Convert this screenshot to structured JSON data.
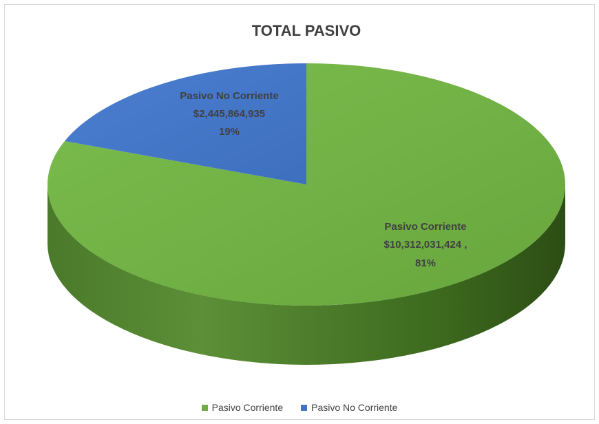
{
  "chart_data": {
    "type": "pie",
    "title": "TOTAL PASIVO",
    "categories": [
      "Pasivo Corriente",
      "Pasivo No Corriente"
    ],
    "values": [
      10312031424,
      2445864935
    ],
    "value_labels": [
      "$10,312,031,424 ,",
      "$2,445,864,935"
    ],
    "percent_labels": [
      "81%",
      "19%"
    ],
    "colors": [
      "#70ad47",
      "#4472c4"
    ],
    "style": "3d",
    "legend": {
      "placement": "bottom",
      "entries": [
        "Pasivo Corriente",
        "Pasivo No Corriente"
      ]
    }
  }
}
